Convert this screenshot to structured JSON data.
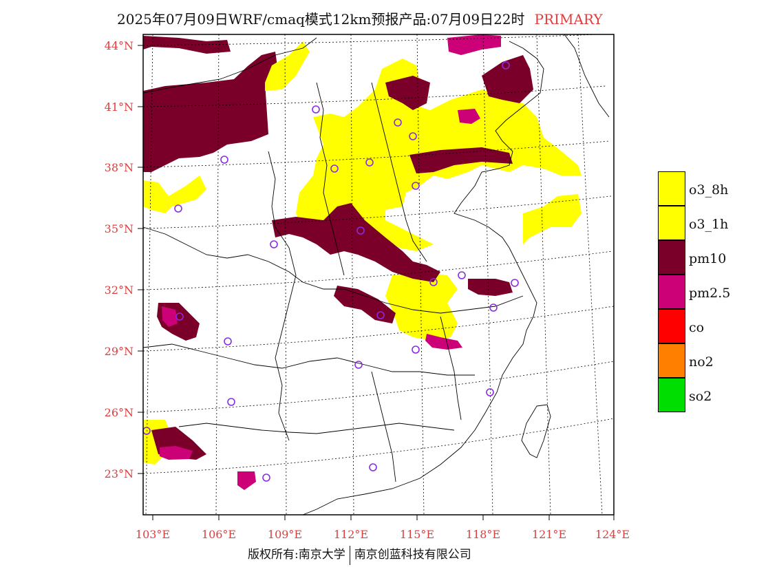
{
  "title": {
    "main": "2025年07月09日WRF/cmaq模式12km预报产品:07月09日22时",
    "tag": "PRIMARY"
  },
  "colors": {
    "o3_8h": "#ffff00",
    "o3_1h": "#ffff00",
    "pm10": "#7b0029",
    "pm2_5": "#cc0077",
    "co": "#ff0000",
    "no2": "#ff7f00",
    "so2": "#00dd00",
    "label": "#e23b3b",
    "station": "#8a2be2"
  },
  "lat_labels": [
    "44°N",
    "41°N",
    "38°N",
    "35°N",
    "32°N",
    "29°N",
    "26°N",
    "23°N"
  ],
  "lon_labels": [
    "103°E",
    "106°E",
    "109°E",
    "112°E",
    "115°E",
    "118°E",
    "121°E",
    "124°E"
  ],
  "legend": [
    {
      "key": "o3_8h",
      "label": "o3_8h"
    },
    {
      "key": "o3_1h",
      "label": "o3_1h"
    },
    {
      "key": "pm10",
      "label": "pm10"
    },
    {
      "key": "pm2_5",
      "label": "pm2.5"
    },
    {
      "key": "co",
      "label": "co"
    },
    {
      "key": "no2",
      "label": "no2"
    },
    {
      "key": "so2",
      "label": "so2"
    }
  ],
  "footer": {
    "left": "版权所有:南京大学",
    "right": "南京创蓝科技有限公司"
  }
}
